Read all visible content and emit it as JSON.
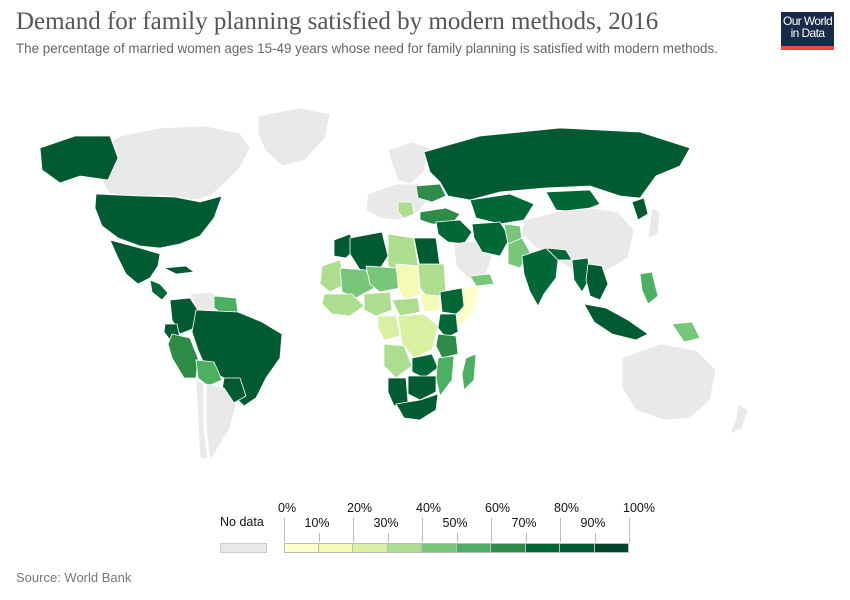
{
  "title": "Demand for family planning satisfied by modern methods, 2016",
  "subtitle": "The percentage of married women ages 15-49 years whose need for family planning is satisfied with modern methods.",
  "logo": {
    "line1": "Our World",
    "line2": "in Data"
  },
  "source": "Source: World Bank",
  "legend": {
    "no_data_label": "No data",
    "no_data_color": "#e9e9e9",
    "upper_labels": [
      "0%",
      "20%",
      "40%",
      "60%",
      "80%",
      "100%"
    ],
    "lower_labels": [
      "10%",
      "30%",
      "50%",
      "70%",
      "90%"
    ],
    "bin_colors": [
      "#ffffcc",
      "#f5fbb6",
      "#d9f0a3",
      "#addd8e",
      "#78c679",
      "#4daf62",
      "#2e8b48",
      "#006837",
      "#015b32",
      "#00442b"
    ]
  },
  "map": {
    "no_data_color": "#e9e9e9",
    "border_color": "#ffffff",
    "regions": [
      {
        "name": "Canada",
        "value": null
      },
      {
        "name": "Greenland",
        "value": null
      },
      {
        "name": "Alaska",
        "value": 80
      },
      {
        "name": "United States",
        "value": 82
      },
      {
        "name": "Mexico",
        "value": 85
      },
      {
        "name": "Cuba",
        "value": 88
      },
      {
        "name": "Central America",
        "value": 76
      },
      {
        "name": "Colombia",
        "value": 87
      },
      {
        "name": "Venezuela",
        "value": null
      },
      {
        "name": "Guyana and Suriname",
        "value": 55
      },
      {
        "name": "Ecuador",
        "value": 80
      },
      {
        "name": "Peru",
        "value": 62
      },
      {
        "name": "Brazil",
        "value": 89
      },
      {
        "name": "Bolivia",
        "value": 52
      },
      {
        "name": "Paraguay",
        "value": 84
      },
      {
        "name": "Chile",
        "value": null
      },
      {
        "name": "Argentina",
        "value": null
      },
      {
        "name": "Europe",
        "value": null
      },
      {
        "name": "Scandinavia",
        "value": null
      },
      {
        "name": "Ukraine",
        "value": 68
      },
      {
        "name": "Balkans",
        "value": 35
      },
      {
        "name": "Turkey",
        "value": 60
      },
      {
        "name": "Russia",
        "value": 82
      },
      {
        "name": "Kazakhstan",
        "value": 78
      },
      {
        "name": "Mongolia",
        "value": 70
      },
      {
        "name": "China",
        "value": null
      },
      {
        "name": "North Korea",
        "value": 85
      },
      {
        "name": "Japan",
        "value": null
      },
      {
        "name": "Middle East",
        "value": 70
      },
      {
        "name": "Saudi Arabia",
        "value": null
      },
      {
        "name": "Yemen",
        "value": 42
      },
      {
        "name": "Iran",
        "value": 74
      },
      {
        "name": "Afghanistan",
        "value": 45
      },
      {
        "name": "Pakistan",
        "value": 48
      },
      {
        "name": "India",
        "value": 72
      },
      {
        "name": "Nepal and Bangladesh",
        "value": 73
      },
      {
        "name": "Myanmar",
        "value": 74
      },
      {
        "name": "Thailand and Vietnam",
        "value": 86
      },
      {
        "name": "Philippines",
        "value": 55
      },
      {
        "name": "Indonesia",
        "value": 82
      },
      {
        "name": "Papua New Guinea",
        "value": 48
      },
      {
        "name": "Australia",
        "value": null
      },
      {
        "name": "New Zealand",
        "value": null
      },
      {
        "name": "Morocco",
        "value": 88
      },
      {
        "name": "Algeria",
        "value": 83
      },
      {
        "name": "Libya",
        "value": 30
      },
      {
        "name": "Egypt",
        "value": 82
      },
      {
        "name": "Mauritania",
        "value": 35
      },
      {
        "name": "Mali",
        "value": 40
      },
      {
        "name": "Niger",
        "value": 42
      },
      {
        "name": "Chad",
        "value": 18
      },
      {
        "name": "Sudan",
        "value": 32
      },
      {
        "name": "West Africa coast",
        "value": 38
      },
      {
        "name": "Nigeria",
        "value": 35
      },
      {
        "name": "Central African Republic",
        "value": 30
      },
      {
        "name": "South Sudan",
        "value": 10
      },
      {
        "name": "Ethiopia",
        "value": 75
      },
      {
        "name": "Somalia",
        "value": 3
      },
      {
        "name": "Kenya",
        "value": 78
      },
      {
        "name": "Congo Basin",
        "value": 22
      },
      {
        "name": "DR Congo",
        "value": 20
      },
      {
        "name": "Tanzania",
        "value": 60
      },
      {
        "name": "Angola",
        "value": 30
      },
      {
        "name": "Zambia",
        "value": 70
      },
      {
        "name": "Mozambique",
        "value": 50
      },
      {
        "name": "Madagascar",
        "value": 58
      },
      {
        "name": "Namibia",
        "value": 85
      },
      {
        "name": "Botswana and Zimbabwe",
        "value": 88
      },
      {
        "name": "South Africa",
        "value": 86
      }
    ]
  }
}
